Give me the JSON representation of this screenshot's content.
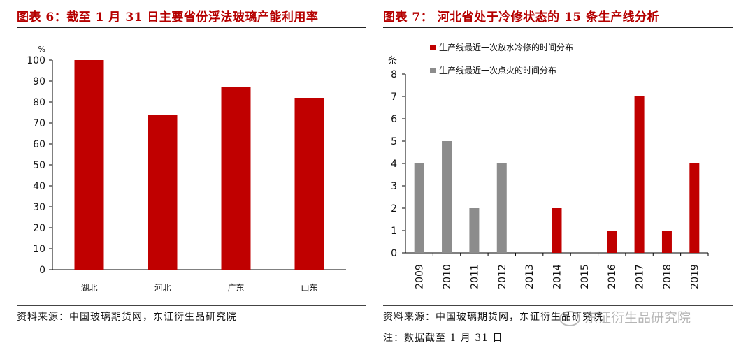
{
  "left": {
    "title": "图表 6：截至 1 月 31 日主要省份浮法玻璃产能利用率",
    "source": "资料来源：中国玻璃期货网，东证衍生品研究院"
  },
  "right": {
    "title": "图表 7：   河北省处于冷修状态的 15 条生产线分析",
    "source": "资料来源：中国玻璃期货网，东证衍生品研究院",
    "note": "注：数据截至 1 月 31 日"
  },
  "watermark": "东证衍生品研究院",
  "colors": {
    "red": "#c00000",
    "gray": "#8c8c8c",
    "title_red": "#b50000"
  },
  "chart_data": [
    {
      "type": "bar",
      "title": "截至 1 月 31 日主要省份浮法玻璃产能利用率",
      "unit_label": "%",
      "categories": [
        "湖北",
        "河北",
        "广东",
        "山东"
      ],
      "values": [
        100,
        74,
        87,
        82
      ],
      "ylim": [
        0,
        100
      ],
      "yticks": [
        0,
        10,
        20,
        30,
        40,
        50,
        60,
        70,
        80,
        90,
        100
      ],
      "grid": false,
      "legend": "none",
      "color": "#c00000"
    },
    {
      "type": "bar",
      "title": "河北省处于冷修状态的 15 条生产线分析",
      "unit_label": "条",
      "categories": [
        "2009",
        "2010",
        "2011",
        "2012",
        "2013",
        "2014",
        "2015",
        "2016",
        "2017",
        "2018",
        "2019"
      ],
      "series": [
        {
          "name": "生产线最近一次放水冷修的时间分布",
          "color": "#c00000",
          "values": [
            0,
            0,
            0,
            0,
            0,
            2,
            0,
            1,
            7,
            1,
            4
          ]
        },
        {
          "name": "生产线最近一次点火的时间分布",
          "color": "#8c8c8c",
          "values": [
            4,
            5,
            2,
            4,
            0,
            0,
            0,
            0,
            0,
            0,
            0
          ]
        }
      ],
      "ylim": [
        0,
        8
      ],
      "yticks": [
        0,
        1,
        2,
        3,
        4,
        5,
        6,
        7,
        8
      ],
      "grid": false,
      "legend": "top-left"
    }
  ]
}
